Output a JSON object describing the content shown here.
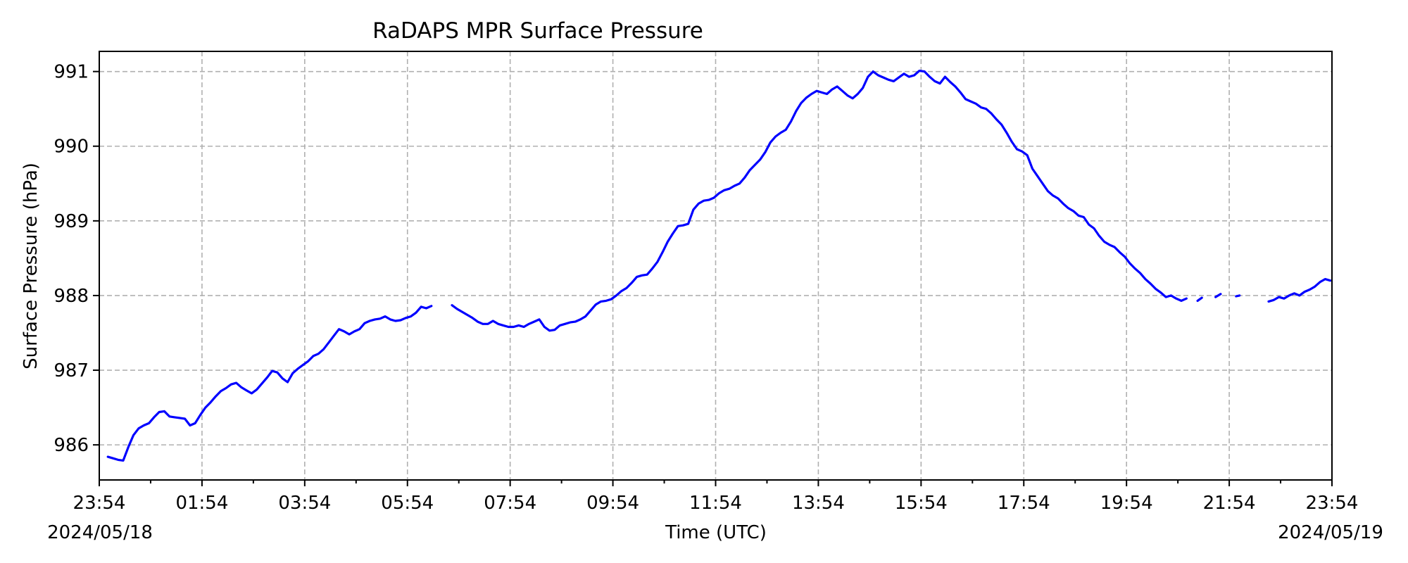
{
  "chart_data": {
    "type": "line",
    "title": "RaDAPS MPR Surface Pressure",
    "xlabel": "Time (UTC)",
    "ylabel": "Surface Pressure (hPa)",
    "grid": true,
    "x_ticks": [
      "23:54",
      "01:54",
      "03:54",
      "05:54",
      "07:54",
      "09:54",
      "11:54",
      "13:54",
      "15:54",
      "17:54",
      "19:54",
      "21:54",
      "23:54"
    ],
    "x_date_labels": {
      "start": "2024/05/18",
      "end": "2024/05/19"
    },
    "xlim": [
      "2024-05-18T23:54",
      "2024-05-19T23:54"
    ],
    "y_ticks": [
      986,
      987,
      988,
      989,
      990,
      991
    ],
    "ylim": [
      985.53,
      991.27
    ],
    "series": [
      {
        "color": "#0000ff",
        "segments": [
          [
            [
              "2024-05-19T00:04",
              985.84
            ],
            [
              "2024-05-19T00:10",
              985.82
            ],
            [
              "2024-05-19T00:16",
              985.8
            ],
            [
              "2024-05-19T00:22",
              985.79
            ],
            [
              "2024-05-19T00:28",
              985.97
            ],
            [
              "2024-05-19T00:34",
              986.13
            ],
            [
              "2024-05-19T00:40",
              986.22
            ],
            [
              "2024-05-19T00:46",
              986.26
            ],
            [
              "2024-05-19T00:52",
              986.29
            ],
            [
              "2024-05-19T00:58",
              986.37
            ],
            [
              "2024-05-19T01:04",
              986.44
            ],
            [
              "2024-05-19T01:10",
              986.45
            ],
            [
              "2024-05-19T01:16",
              986.38
            ],
            [
              "2024-05-19T01:22",
              986.37
            ],
            [
              "2024-05-19T01:28",
              986.36
            ],
            [
              "2024-05-19T01:34",
              986.35
            ],
            [
              "2024-05-19T01:40",
              986.26
            ],
            [
              "2024-05-19T01:46",
              986.29
            ],
            [
              "2024-05-19T01:52",
              986.4
            ],
            [
              "2024-05-19T01:58",
              986.5
            ],
            [
              "2024-05-19T02:04",
              986.57
            ],
            [
              "2024-05-19T02:10",
              986.65
            ],
            [
              "2024-05-19T02:16",
              986.72
            ],
            [
              "2024-05-19T02:22",
              986.76
            ],
            [
              "2024-05-19T02:28",
              986.81
            ],
            [
              "2024-05-19T02:34",
              986.83
            ],
            [
              "2024-05-19T02:40",
              986.77
            ],
            [
              "2024-05-19T02:46",
              986.73
            ],
            [
              "2024-05-19T02:52",
              986.69
            ],
            [
              "2024-05-19T02:58",
              986.74
            ],
            [
              "2024-05-19T03:04",
              986.82
            ],
            [
              "2024-05-19T03:10",
              986.9
            ],
            [
              "2024-05-19T03:16",
              986.99
            ],
            [
              "2024-05-19T03:22",
              986.97
            ],
            [
              "2024-05-19T03:28",
              986.89
            ],
            [
              "2024-05-19T03:34",
              986.84
            ],
            [
              "2024-05-19T03:40",
              986.96
            ],
            [
              "2024-05-19T03:46",
              987.02
            ],
            [
              "2024-05-19T03:52",
              987.07
            ],
            [
              "2024-05-19T03:58",
              987.12
            ],
            [
              "2024-05-19T04:04",
              987.19
            ],
            [
              "2024-05-19T04:10",
              987.22
            ],
            [
              "2024-05-19T04:16",
              987.28
            ],
            [
              "2024-05-19T04:22",
              987.37
            ],
            [
              "2024-05-19T04:28",
              987.46
            ],
            [
              "2024-05-19T04:34",
              987.55
            ],
            [
              "2024-05-19T04:40",
              987.52
            ],
            [
              "2024-05-19T04:46",
              987.48
            ],
            [
              "2024-05-19T04:52",
              987.52
            ],
            [
              "2024-05-19T04:58",
              987.55
            ],
            [
              "2024-05-19T05:04",
              987.63
            ],
            [
              "2024-05-19T05:10",
              987.66
            ],
            [
              "2024-05-19T05:16",
              987.68
            ],
            [
              "2024-05-19T05:22",
              987.69
            ],
            [
              "2024-05-19T05:28",
              987.72
            ],
            [
              "2024-05-19T05:34",
              987.68
            ],
            [
              "2024-05-19T05:40",
              987.66
            ],
            [
              "2024-05-19T05:46",
              987.67
            ],
            [
              "2024-05-19T05:52",
              987.7
            ],
            [
              "2024-05-19T05:58",
              987.72
            ],
            [
              "2024-05-19T06:04",
              987.77
            ],
            [
              "2024-05-19T06:10",
              987.85
            ],
            [
              "2024-05-19T06:16",
              987.83
            ],
            [
              "2024-05-19T06:22",
              987.86
            ]
          ],
          [
            [
              "2024-05-19T06:46",
              987.87
            ],
            [
              "2024-05-19T06:52",
              987.82
            ],
            [
              "2024-05-19T06:58",
              987.78
            ],
            [
              "2024-05-19T07:04",
              987.74
            ],
            [
              "2024-05-19T07:10",
              987.7
            ],
            [
              "2024-05-19T07:16",
              987.65
            ],
            [
              "2024-05-19T07:22",
              987.62
            ],
            [
              "2024-05-19T07:28",
              987.62
            ],
            [
              "2024-05-19T07:34",
              987.66
            ],
            [
              "2024-05-19T07:40",
              987.62
            ],
            [
              "2024-05-19T07:46",
              987.6
            ],
            [
              "2024-05-19T07:52",
              987.58
            ],
            [
              "2024-05-19T07:58",
              987.58
            ],
            [
              "2024-05-19T08:04",
              987.6
            ],
            [
              "2024-05-19T08:10",
              987.58
            ],
            [
              "2024-05-19T08:16",
              987.62
            ],
            [
              "2024-05-19T08:22",
              987.65
            ],
            [
              "2024-05-19T08:28",
              987.68
            ],
            [
              "2024-05-19T08:34",
              987.58
            ],
            [
              "2024-05-19T08:40",
              987.53
            ],
            [
              "2024-05-19T08:46",
              987.54
            ],
            [
              "2024-05-19T08:52",
              987.6
            ],
            [
              "2024-05-19T08:58",
              987.62
            ],
            [
              "2024-05-19T09:04",
              987.64
            ],
            [
              "2024-05-19T09:10",
              987.65
            ],
            [
              "2024-05-19T09:16",
              987.68
            ],
            [
              "2024-05-19T09:22",
              987.72
            ],
            [
              "2024-05-19T09:28",
              987.8
            ],
            [
              "2024-05-19T09:34",
              987.88
            ],
            [
              "2024-05-19T09:40",
              987.92
            ],
            [
              "2024-05-19T09:46",
              987.93
            ],
            [
              "2024-05-19T09:52",
              987.95
            ],
            [
              "2024-05-19T09:58",
              988.0
            ],
            [
              "2024-05-19T10:04",
              988.06
            ],
            [
              "2024-05-19T10:10",
              988.1
            ],
            [
              "2024-05-19T10:16",
              988.17
            ],
            [
              "2024-05-19T10:22",
              988.25
            ],
            [
              "2024-05-19T10:28",
              988.27
            ],
            [
              "2024-05-19T10:34",
              988.28
            ],
            [
              "2024-05-19T10:40",
              988.36
            ],
            [
              "2024-05-19T10:46",
              988.45
            ],
            [
              "2024-05-19T10:52",
              988.58
            ],
            [
              "2024-05-19T10:58",
              988.72
            ],
            [
              "2024-05-19T11:04",
              988.83
            ],
            [
              "2024-05-19T11:10",
              988.93
            ],
            [
              "2024-05-19T11:16",
              988.94
            ],
            [
              "2024-05-19T11:22",
              988.96
            ],
            [
              "2024-05-19T11:28",
              989.15
            ],
            [
              "2024-05-19T11:34",
              989.23
            ],
            [
              "2024-05-19T11:40",
              989.27
            ],
            [
              "2024-05-19T11:46",
              989.28
            ],
            [
              "2024-05-19T11:52",
              989.31
            ],
            [
              "2024-05-19T11:58",
              989.37
            ],
            [
              "2024-05-19T12:04",
              989.41
            ],
            [
              "2024-05-19T12:10",
              989.43
            ],
            [
              "2024-05-19T12:16",
              989.47
            ],
            [
              "2024-05-19T12:22",
              989.5
            ],
            [
              "2024-05-19T12:28",
              989.58
            ],
            [
              "2024-05-19T12:34",
              989.68
            ],
            [
              "2024-05-19T12:40",
              989.75
            ],
            [
              "2024-05-19T12:46",
              989.82
            ],
            [
              "2024-05-19T12:52",
              989.92
            ],
            [
              "2024-05-19T12:58",
              990.05
            ],
            [
              "2024-05-19T13:04",
              990.13
            ],
            [
              "2024-05-19T13:10",
              990.18
            ],
            [
              "2024-05-19T13:16",
              990.22
            ],
            [
              "2024-05-19T13:22",
              990.33
            ],
            [
              "2024-05-19T13:28",
              990.47
            ],
            [
              "2024-05-19T13:34",
              990.58
            ],
            [
              "2024-05-19T13:40",
              990.65
            ],
            [
              "2024-05-19T13:46",
              990.7
            ],
            [
              "2024-05-19T13:52",
              990.74
            ],
            [
              "2024-05-19T13:58",
              990.72
            ],
            [
              "2024-05-19T14:04",
              990.7
            ],
            [
              "2024-05-19T14:10",
              990.76
            ],
            [
              "2024-05-19T14:16",
              990.8
            ],
            [
              "2024-05-19T14:22",
              990.74
            ],
            [
              "2024-05-19T14:28",
              990.68
            ],
            [
              "2024-05-19T14:34",
              990.64
            ],
            [
              "2024-05-19T14:40",
              990.7
            ],
            [
              "2024-05-19T14:46",
              990.78
            ],
            [
              "2024-05-19T14:52",
              990.93
            ],
            [
              "2024-05-19T14:58",
              991.0
            ],
            [
              "2024-05-19T15:04",
              990.95
            ],
            [
              "2024-05-19T15:10",
              990.92
            ],
            [
              "2024-05-19T15:16",
              990.89
            ],
            [
              "2024-05-19T15:22",
              990.87
            ],
            [
              "2024-05-19T15:28",
              990.92
            ],
            [
              "2024-05-19T15:34",
              990.97
            ],
            [
              "2024-05-19T15:40",
              990.93
            ],
            [
              "2024-05-19T15:46",
              990.95
            ],
            [
              "2024-05-19T15:52",
              991.01
            ],
            [
              "2024-05-19T15:58",
              991.0
            ],
            [
              "2024-05-19T16:04",
              990.93
            ],
            [
              "2024-05-19T16:10",
              990.87
            ],
            [
              "2024-05-19T16:16",
              990.84
            ],
            [
              "2024-05-19T16:22",
              990.93
            ],
            [
              "2024-05-19T16:28",
              990.86
            ],
            [
              "2024-05-19T16:34",
              990.8
            ],
            [
              "2024-05-19T16:40",
              990.72
            ],
            [
              "2024-05-19T16:46",
              990.63
            ],
            [
              "2024-05-19T16:52",
              990.6
            ],
            [
              "2024-05-19T16:58",
              990.57
            ],
            [
              "2024-05-19T17:04",
              990.52
            ],
            [
              "2024-05-19T17:10",
              990.5
            ],
            [
              "2024-05-19T17:16",
              990.44
            ],
            [
              "2024-05-19T17:22",
              990.36
            ],
            [
              "2024-05-19T17:28",
              990.29
            ],
            [
              "2024-05-19T17:34",
              990.18
            ],
            [
              "2024-05-19T17:40",
              990.06
            ],
            [
              "2024-05-19T17:46",
              989.96
            ],
            [
              "2024-05-19T17:52",
              989.93
            ],
            [
              "2024-05-19T17:58",
              989.88
            ],
            [
              "2024-05-19T18:04",
              989.7
            ],
            [
              "2024-05-19T18:10",
              989.6
            ],
            [
              "2024-05-19T18:16",
              989.5
            ],
            [
              "2024-05-19T18:22",
              989.4
            ],
            [
              "2024-05-19T18:28",
              989.34
            ],
            [
              "2024-05-19T18:34",
              989.3
            ],
            [
              "2024-05-19T18:40",
              989.23
            ],
            [
              "2024-05-19T18:46",
              989.17
            ],
            [
              "2024-05-19T18:52",
              989.13
            ],
            [
              "2024-05-19T18:58",
              989.07
            ],
            [
              "2024-05-19T19:04",
              989.05
            ],
            [
              "2024-05-19T19:10",
              988.95
            ],
            [
              "2024-05-19T19:16",
              988.9
            ],
            [
              "2024-05-19T19:22",
              988.8
            ],
            [
              "2024-05-19T19:28",
              988.72
            ],
            [
              "2024-05-19T19:34",
              988.68
            ],
            [
              "2024-05-19T19:40",
              988.65
            ],
            [
              "2024-05-19T19:46",
              988.58
            ],
            [
              "2024-05-19T19:52",
              988.52
            ],
            [
              "2024-05-19T19:58",
              988.43
            ],
            [
              "2024-05-19T20:04",
              988.36
            ],
            [
              "2024-05-19T20:10",
              988.3
            ],
            [
              "2024-05-19T20:16",
              988.22
            ],
            [
              "2024-05-19T20:22",
              988.16
            ],
            [
              "2024-05-19T20:28",
              988.09
            ],
            [
              "2024-05-19T20:34",
              988.04
            ],
            [
              "2024-05-19T20:40",
              987.98
            ],
            [
              "2024-05-19T20:46",
              988.0
            ],
            [
              "2024-05-19T20:52",
              987.96
            ],
            [
              "2024-05-19T20:58",
              987.93
            ],
            [
              "2024-05-19T21:04",
              987.96
            ]
          ],
          [
            [
              "2024-05-19T21:17",
              987.93
            ],
            [
              "2024-05-19T21:22",
              987.97
            ]
          ],
          [
            [
              "2024-05-19T21:38",
              987.98
            ],
            [
              "2024-05-19T21:44",
              988.02
            ]
          ],
          [
            [
              "2024-05-19T22:02",
              987.99
            ],
            [
              "2024-05-19T22:06",
              988.0
            ]
          ],
          [
            [
              "2024-05-19T22:40",
              987.92
            ],
            [
              "2024-05-19T22:46",
              987.94
            ],
            [
              "2024-05-19T22:52",
              987.98
            ],
            [
              "2024-05-19T22:58",
              987.96
            ],
            [
              "2024-05-19T23:04",
              988.0
            ],
            [
              "2024-05-19T23:10",
              988.03
            ],
            [
              "2024-05-19T23:16",
              988.0
            ],
            [
              "2024-05-19T23:22",
              988.05
            ],
            [
              "2024-05-19T23:28",
              988.08
            ],
            [
              "2024-05-19T23:34",
              988.12
            ],
            [
              "2024-05-19T23:40",
              988.18
            ],
            [
              "2024-05-19T23:46",
              988.22
            ],
            [
              "2024-05-19T23:52",
              988.2
            ]
          ]
        ]
      }
    ]
  }
}
